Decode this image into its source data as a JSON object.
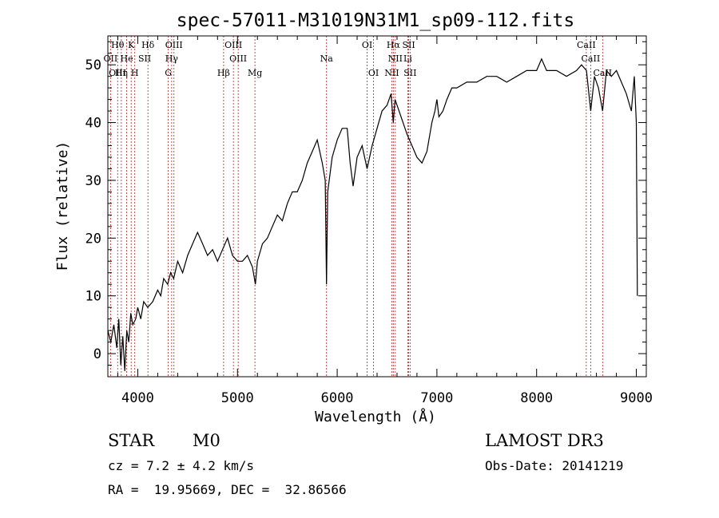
{
  "chart_data": {
    "type": "line",
    "title": "spec-57011-M31019N31M1_sp09-112.fits",
    "xlabel": "Wavelength (Å)",
    "ylabel": "Flux (relative)",
    "xlim": [
      3700,
      9100
    ],
    "ylim": [
      -4,
      55
    ],
    "x_ticks": [
      4000,
      5000,
      6000,
      7000,
      8000,
      9000
    ],
    "y_ticks": [
      0,
      10,
      20,
      30,
      40,
      50
    ],
    "grid": false,
    "series": [
      {
        "name": "flux",
        "points": [
          [
            3700,
            4
          ],
          [
            3730,
            2
          ],
          [
            3760,
            5
          ],
          [
            3790,
            1
          ],
          [
            3810,
            6
          ],
          [
            3830,
            -2
          ],
          [
            3850,
            3
          ],
          [
            3870,
            -3
          ],
          [
            3890,
            4
          ],
          [
            3910,
            2
          ],
          [
            3930,
            7
          ],
          [
            3950,
            5
          ],
          [
            3980,
            6
          ],
          [
            4000,
            8
          ],
          [
            4030,
            6
          ],
          [
            4060,
            9
          ],
          [
            4100,
            8
          ],
          [
            4150,
            9
          ],
          [
            4200,
            11
          ],
          [
            4230,
            10
          ],
          [
            4260,
            13
          ],
          [
            4300,
            12
          ],
          [
            4330,
            14
          ],
          [
            4360,
            13
          ],
          [
            4400,
            16
          ],
          [
            4450,
            14
          ],
          [
            4500,
            17
          ],
          [
            4550,
            19
          ],
          [
            4600,
            21
          ],
          [
            4650,
            19
          ],
          [
            4700,
            17
          ],
          [
            4750,
            18
          ],
          [
            4800,
            16
          ],
          [
            4850,
            18
          ],
          [
            4900,
            20
          ],
          [
            4950,
            17
          ],
          [
            5000,
            16
          ],
          [
            5050,
            16
          ],
          [
            5100,
            17
          ],
          [
            5150,
            15
          ],
          [
            5180,
            12
          ],
          [
            5200,
            16
          ],
          [
            5250,
            19
          ],
          [
            5300,
            20
          ],
          [
            5350,
            22
          ],
          [
            5400,
            24
          ],
          [
            5450,
            23
          ],
          [
            5500,
            26
          ],
          [
            5550,
            28
          ],
          [
            5600,
            28
          ],
          [
            5650,
            30
          ],
          [
            5700,
            33
          ],
          [
            5750,
            35
          ],
          [
            5800,
            37
          ],
          [
            5850,
            33
          ],
          [
            5880,
            30
          ],
          [
            5893,
            12
          ],
          [
            5905,
            28
          ],
          [
            5950,
            34
          ],
          [
            6000,
            37
          ],
          [
            6050,
            39
          ],
          [
            6100,
            39
          ],
          [
            6130,
            33
          ],
          [
            6160,
            29
          ],
          [
            6200,
            34
          ],
          [
            6250,
            36
          ],
          [
            6300,
            32
          ],
          [
            6350,
            36
          ],
          [
            6400,
            39
          ],
          [
            6450,
            42
          ],
          [
            6500,
            43
          ],
          [
            6540,
            45
          ],
          [
            6563,
            40
          ],
          [
            6580,
            44
          ],
          [
            6620,
            42
          ],
          [
            6660,
            40
          ],
          [
            6700,
            38
          ],
          [
            6750,
            36
          ],
          [
            6800,
            34
          ],
          [
            6850,
            33
          ],
          [
            6900,
            35
          ],
          [
            6950,
            40
          ],
          [
            6980,
            42
          ],
          [
            7000,
            44
          ],
          [
            7020,
            41
          ],
          [
            7060,
            42
          ],
          [
            7100,
            44
          ],
          [
            7150,
            46
          ],
          [
            7200,
            46
          ],
          [
            7300,
            47
          ],
          [
            7400,
            47
          ],
          [
            7500,
            48
          ],
          [
            7600,
            48
          ],
          [
            7700,
            47
          ],
          [
            7800,
            48
          ],
          [
            7900,
            49
          ],
          [
            8000,
            49
          ],
          [
            8050,
            51
          ],
          [
            8100,
            49
          ],
          [
            8200,
            49
          ],
          [
            8300,
            48
          ],
          [
            8400,
            49
          ],
          [
            8450,
            50
          ],
          [
            8500,
            49
          ],
          [
            8542,
            42
          ],
          [
            8580,
            48
          ],
          [
            8620,
            46
          ],
          [
            8662,
            42
          ],
          [
            8700,
            49
          ],
          [
            8750,
            48
          ],
          [
            8800,
            49
          ],
          [
            8850,
            47
          ],
          [
            8900,
            45
          ],
          [
            8950,
            42
          ],
          [
            8980,
            48
          ],
          [
            9000,
            40
          ],
          [
            9010,
            10
          ]
        ]
      }
    ],
    "line_labels": [
      {
        "text": "Hθ",
        "x": 3798,
        "row": 0
      },
      {
        "text": "K",
        "x": 3934,
        "row": 0
      },
      {
        "text": "Hδ",
        "x": 4102,
        "row": 0
      },
      {
        "text": "OIII",
        "x": 4363,
        "row": 0
      },
      {
        "text": "OIII",
        "x": 4959,
        "row": 0
      },
      {
        "text": "OI",
        "x": 6300,
        "row": 0
      },
      {
        "text": "Hα",
        "x": 6563,
        "row": 0
      },
      {
        "text": "SII",
        "x": 6717,
        "row": 0
      },
      {
        "text": "CaII",
        "x": 8498,
        "row": 0
      },
      {
        "text": "OII",
        "x": 3727,
        "row": 1
      },
      {
        "text": "He",
        "x": 3889,
        "row": 1
      },
      {
        "text": "SII",
        "x": 4069,
        "row": 1
      },
      {
        "text": "Hγ",
        "x": 4340,
        "row": 1
      },
      {
        "text": "OIII",
        "x": 5007,
        "row": 1
      },
      {
        "text": "Na",
        "x": 5893,
        "row": 1
      },
      {
        "text": "NII",
        "x": 6583,
        "row": 1
      },
      {
        "text": "Li",
        "x": 6708,
        "row": 1
      },
      {
        "text": "CaII",
        "x": 8542,
        "row": 1
      },
      {
        "text": "OIII",
        "x": 3797,
        "row": 2
      },
      {
        "text": "Hη",
        "x": 3835,
        "row": 2
      },
      {
        "text": "H",
        "x": 3970,
        "row": 2
      },
      {
        "text": "G",
        "x": 4306,
        "row": 2
      },
      {
        "text": "Hβ",
        "x": 4861,
        "row": 2
      },
      {
        "text": "Mg",
        "x": 5175,
        "row": 2
      },
      {
        "text": "OI",
        "x": 6364,
        "row": 2
      },
      {
        "text": "NII",
        "x": 6548,
        "row": 2
      },
      {
        "text": "SII",
        "x": 6731,
        "row": 2
      },
      {
        "text": "CaII",
        "x": 8662,
        "row": 2
      }
    ],
    "line_markers": [
      3727,
      3798,
      3835,
      3889,
      3934,
      3970,
      4102,
      4306,
      4340,
      4363,
      4861,
      4959,
      5007,
      5175,
      5893,
      6300,
      6364,
      6548,
      6563,
      6583,
      6708,
      6717,
      6731,
      8498,
      8542,
      8662
    ]
  },
  "info": {
    "class": "STAR",
    "subclass": "M0",
    "survey": "LAMOST DR3",
    "cz": "cz = 7.2 ± 4.2 km/s",
    "obs_date": "Obs-Date: 20141219",
    "coords": "RA =  19.95669, DEC =  32.86566"
  },
  "colors": {
    "line": "#000000",
    "markers": "#b22222",
    "axes": "#000000"
  }
}
